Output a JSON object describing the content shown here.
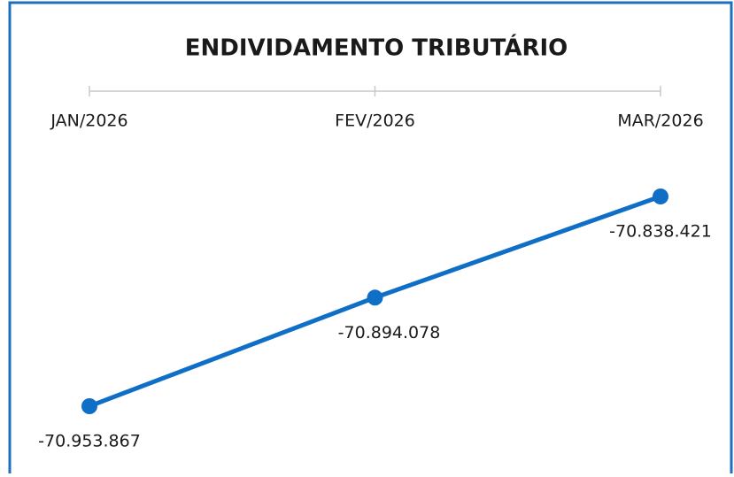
{
  "chart_data": {
    "type": "line",
    "title": "ENDIVIDAMENTO TRIBUTÁRIO",
    "categories": [
      "JAN/2026",
      "FEV/2026",
      "MAR/2026"
    ],
    "series": [
      {
        "name": null,
        "color": "#0f6fc6",
        "values": [
          -70953867,
          -70894078,
          -70838421
        ],
        "value_labels": [
          "-70.953.867",
          "-70.894.078",
          "-70.838.421"
        ]
      }
    ]
  }
}
